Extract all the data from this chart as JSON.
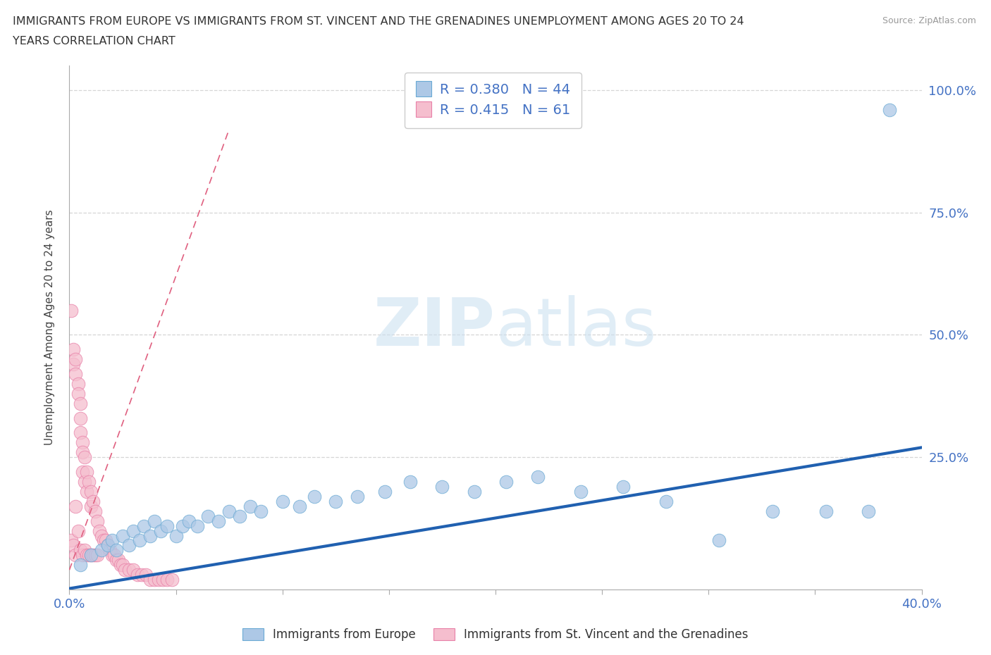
{
  "title_line1": "IMMIGRANTS FROM EUROPE VS IMMIGRANTS FROM ST. VINCENT AND THE GRENADINES UNEMPLOYMENT AMONG AGES 20 TO 24",
  "title_line2": "YEARS CORRELATION CHART",
  "source_text": "Source: ZipAtlas.com",
  "ylabel": "Unemployment Among Ages 20 to 24 years",
  "xlim": [
    0.0,
    0.4
  ],
  "ylim": [
    -0.02,
    1.05
  ],
  "xticks": [
    0.0,
    0.05,
    0.1,
    0.15,
    0.2,
    0.25,
    0.3,
    0.35,
    0.4
  ],
  "ytick_vals": [
    0.0,
    0.25,
    0.5,
    0.75,
    1.0
  ],
  "watermark_zip": "ZIP",
  "watermark_atlas": "atlas",
  "blue_R": 0.38,
  "blue_N": 44,
  "pink_R": 0.415,
  "pink_N": 61,
  "blue_color": "#adc8e6",
  "blue_edge": "#6aaad4",
  "pink_color": "#f5bece",
  "pink_edge": "#e880a8",
  "blue_line_color": "#2060b0",
  "pink_line_color": "#e06080",
  "legend_label_blue": "Immigrants from Europe",
  "legend_label_pink": "Immigrants from St. Vincent and the Grenadines",
  "blue_dots_x": [
    0.005,
    0.01,
    0.015,
    0.018,
    0.02,
    0.022,
    0.025,
    0.028,
    0.03,
    0.033,
    0.035,
    0.038,
    0.04,
    0.043,
    0.046,
    0.05,
    0.053,
    0.056,
    0.06,
    0.065,
    0.07,
    0.075,
    0.08,
    0.085,
    0.09,
    0.1,
    0.108,
    0.115,
    0.125,
    0.135,
    0.148,
    0.16,
    0.175,
    0.19,
    0.205,
    0.22,
    0.24,
    0.26,
    0.28,
    0.305,
    0.33,
    0.355,
    0.375,
    0.385
  ],
  "blue_dots_y": [
    0.03,
    0.05,
    0.06,
    0.07,
    0.08,
    0.06,
    0.09,
    0.07,
    0.1,
    0.08,
    0.11,
    0.09,
    0.12,
    0.1,
    0.11,
    0.09,
    0.11,
    0.12,
    0.11,
    0.13,
    0.12,
    0.14,
    0.13,
    0.15,
    0.14,
    0.16,
    0.15,
    0.17,
    0.16,
    0.17,
    0.18,
    0.2,
    0.19,
    0.18,
    0.2,
    0.21,
    0.18,
    0.19,
    0.16,
    0.08,
    0.14,
    0.14,
    0.14,
    0.96
  ],
  "pink_dots_x": [
    0.001,
    0.001,
    0.002,
    0.002,
    0.002,
    0.003,
    0.003,
    0.003,
    0.003,
    0.004,
    0.004,
    0.004,
    0.005,
    0.005,
    0.005,
    0.005,
    0.006,
    0.006,
    0.006,
    0.006,
    0.007,
    0.007,
    0.007,
    0.008,
    0.008,
    0.008,
    0.009,
    0.009,
    0.01,
    0.01,
    0.01,
    0.011,
    0.011,
    0.012,
    0.012,
    0.013,
    0.013,
    0.014,
    0.015,
    0.016,
    0.017,
    0.018,
    0.019,
    0.02,
    0.021,
    0.022,
    0.023,
    0.024,
    0.025,
    0.026,
    0.028,
    0.03,
    0.032,
    0.034,
    0.036,
    0.038,
    0.04,
    0.042,
    0.044,
    0.046,
    0.048
  ],
  "pink_dots_y": [
    0.55,
    0.08,
    0.47,
    0.44,
    0.07,
    0.45,
    0.42,
    0.15,
    0.05,
    0.4,
    0.38,
    0.1,
    0.36,
    0.33,
    0.3,
    0.06,
    0.28,
    0.26,
    0.22,
    0.05,
    0.25,
    0.2,
    0.06,
    0.22,
    0.18,
    0.05,
    0.2,
    0.05,
    0.18,
    0.15,
    0.05,
    0.16,
    0.05,
    0.14,
    0.05,
    0.12,
    0.05,
    0.1,
    0.09,
    0.08,
    0.08,
    0.07,
    0.06,
    0.05,
    0.05,
    0.04,
    0.04,
    0.03,
    0.03,
    0.02,
    0.02,
    0.02,
    0.01,
    0.01,
    0.01,
    0.0,
    0.0,
    0.0,
    0.0,
    0.0,
    0.0
  ],
  "blue_slope": 0.72,
  "blue_intercept": -0.018,
  "pink_slope": 12.0,
  "pink_intercept": 0.02,
  "pink_line_x_end": 0.075
}
